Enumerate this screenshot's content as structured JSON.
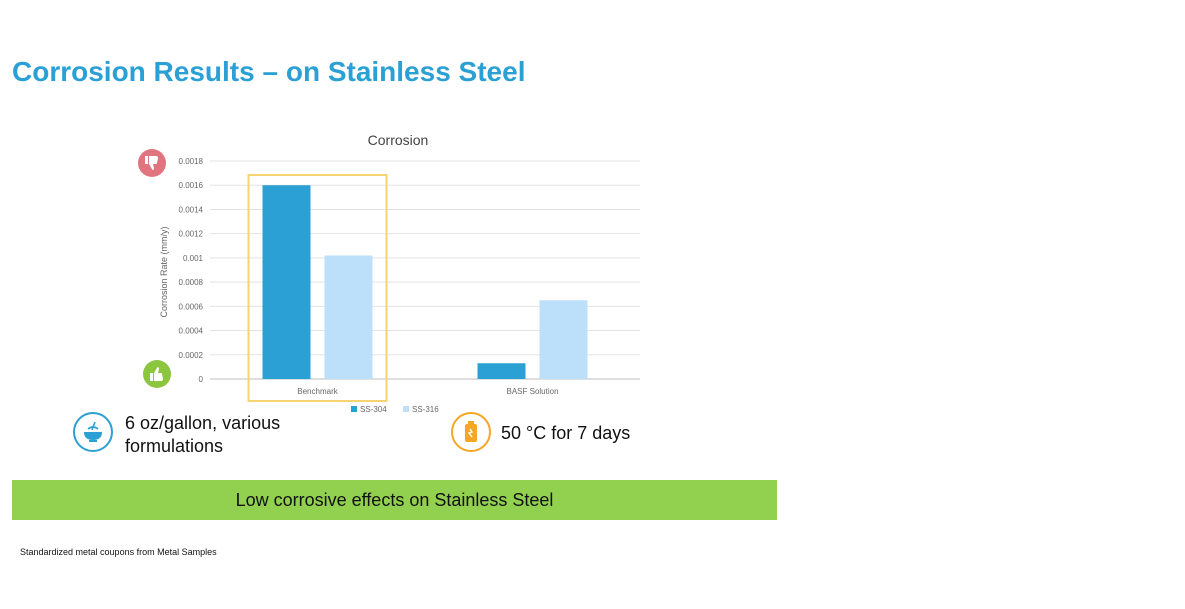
{
  "slide": {
    "title": "Corrosion Results – on Stainless Steel",
    "conditions": {
      "concentration": "6 oz/gallon, various formulations",
      "concentration_icon": "bowl-icon",
      "temperature": "50 °C for 7 days",
      "temperature_icon": "heated-bottle-icon"
    },
    "banner": "Low corrosive effects on Stainless Steel",
    "footnote": "Standardized metal coupons from Metal Samples",
    "badges": {
      "bad": "thumbs-down-icon",
      "good": "thumbs-up-icon"
    },
    "colors": {
      "title": "#2aa0d4",
      "banner": "#92d050",
      "highlight_box": "#f7d371",
      "badge_bad": "#e07580",
      "badge_good": "#8cc63f",
      "temp_icon": "#f5a623"
    }
  },
  "chart_data": {
    "type": "bar",
    "title": "Corrosion",
    "ylabel": "Corrosion Rate (mm/y)",
    "xlabel": "",
    "categories": [
      "Benchmark",
      "BASF Solution"
    ],
    "series": [
      {
        "name": "SS-304",
        "color": "#2aa0d4",
        "values": [
          0.0016,
          0.00013
        ]
      },
      {
        "name": "SS-316",
        "color": "#bde0fa",
        "values": [
          0.00102,
          0.00065
        ]
      }
    ],
    "ylim": [
      0,
      0.0018
    ],
    "yticks": [
      "0",
      "0.0002",
      "0.0004",
      "0.0006",
      "0.0008",
      "0.001",
      "0.0012",
      "0.0014",
      "0.0016",
      "0.0018"
    ],
    "grid": true,
    "legend": "bottom-right",
    "highlighted_category": "Benchmark"
  }
}
